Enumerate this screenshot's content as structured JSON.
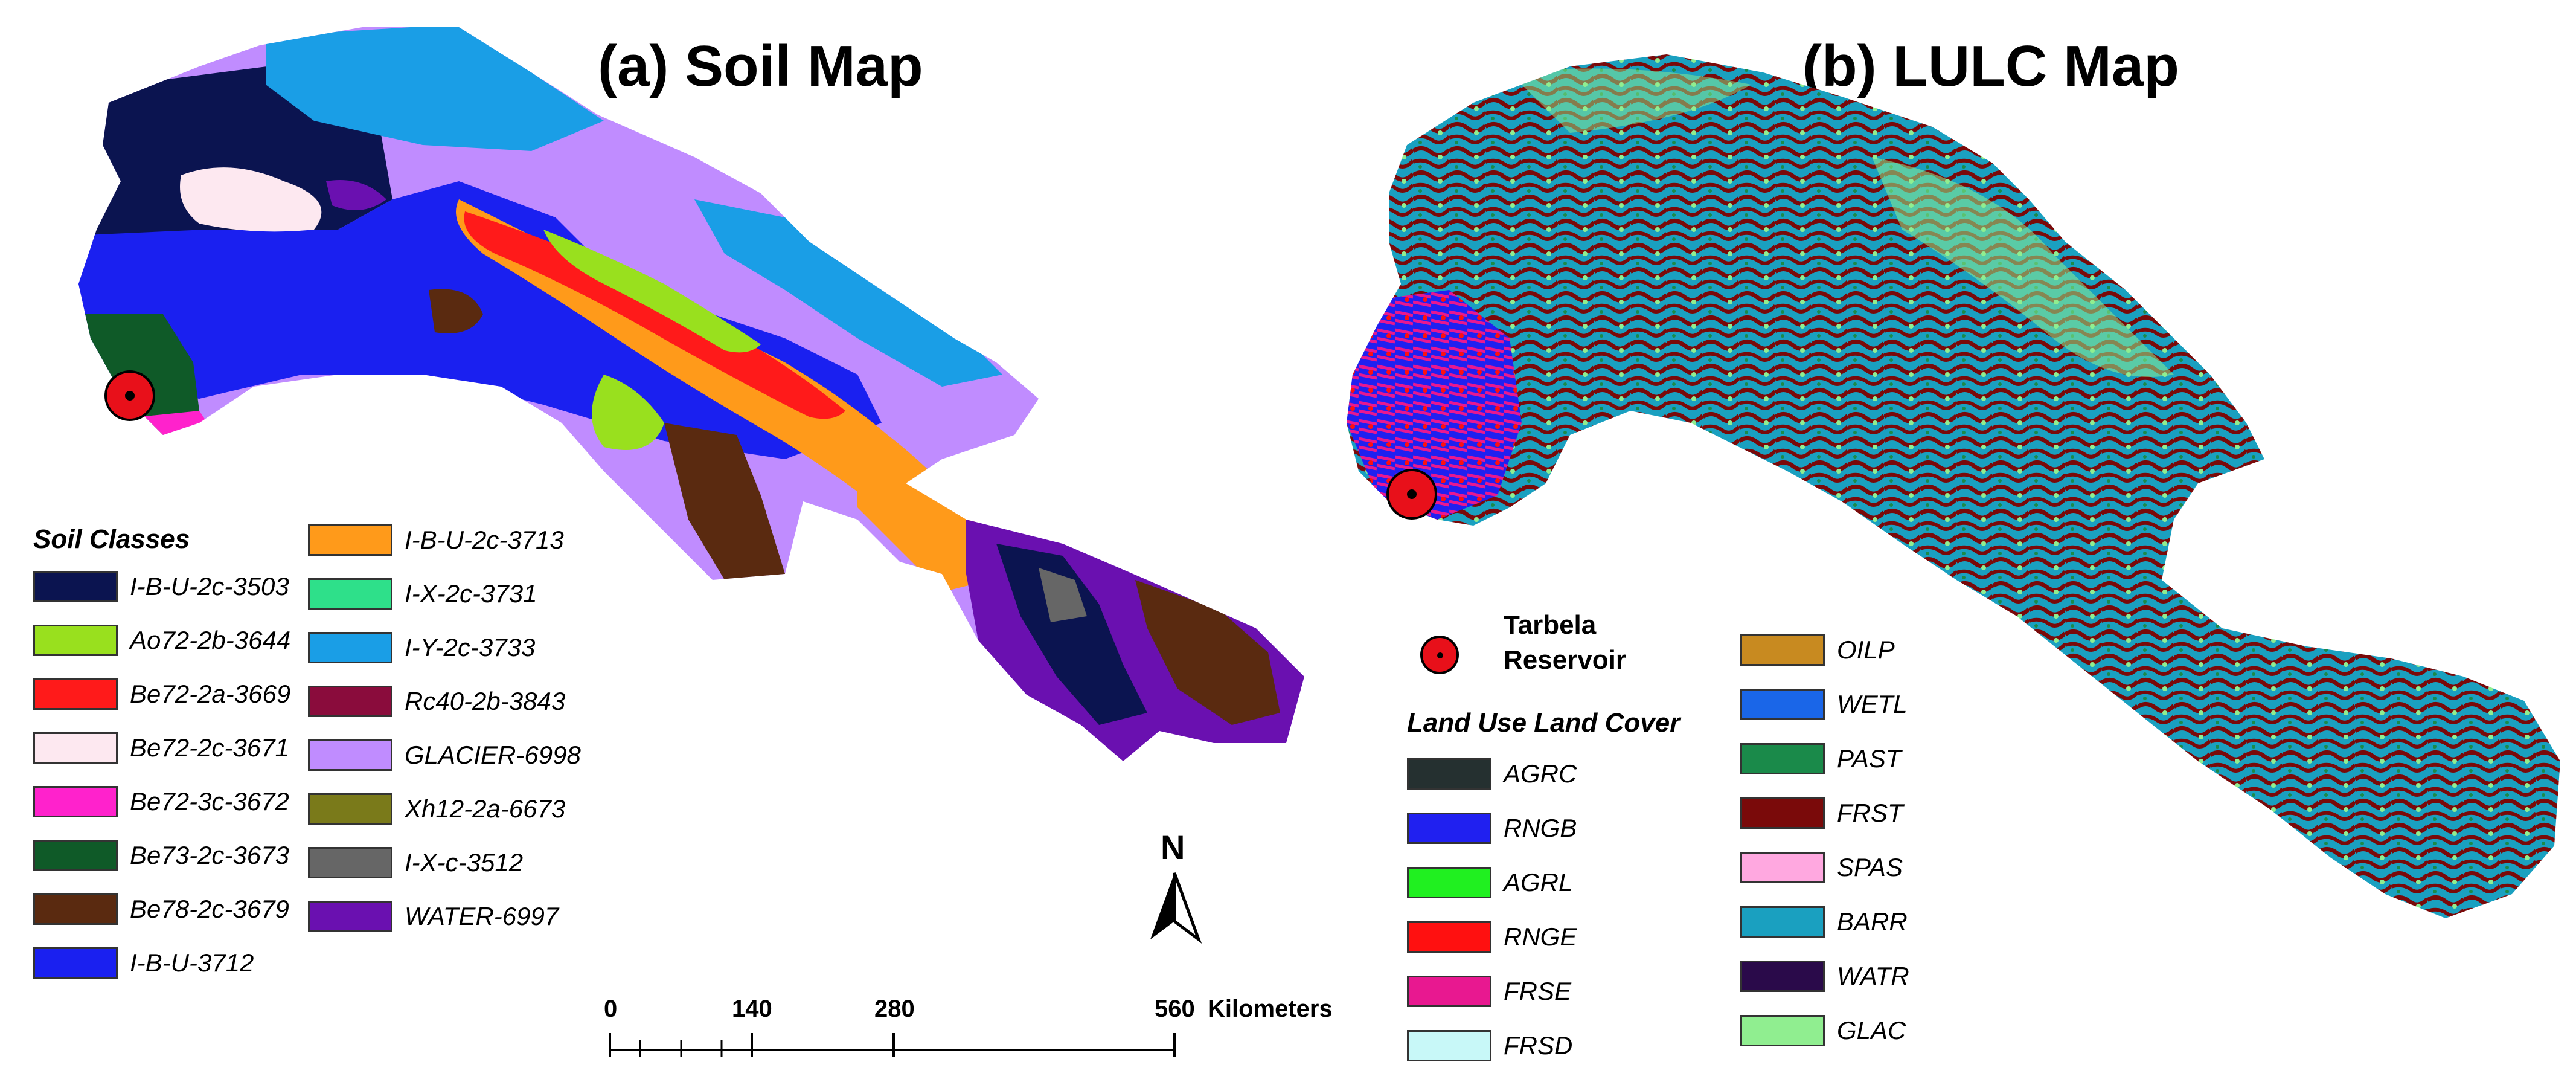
{
  "titles": {
    "soil": "(a) Soil Map",
    "lulc": "(b) LULC Map"
  },
  "soil_legend": {
    "title": "Soil Classes",
    "column1": [
      {
        "label": "I-B-U-2c-3503",
        "color": "#0b1450"
      },
      {
        "label": "Ao72-2b-3644",
        "color": "#99e01e"
      },
      {
        "label": "Be72-2a-3669",
        "color": "#ff1a1a"
      },
      {
        "label": "Be72-2c-3671",
        "color": "#fde8f0"
      },
      {
        "label": "Be72-3c-3672",
        "color": "#ff22cc"
      },
      {
        "label": "Be73-2c-3673",
        "color": "#0f5a28"
      },
      {
        "label": "Be78-2c-3679",
        "color": "#5a2a10"
      },
      {
        "label": "I-B-U-3712",
        "color": "#1a20f0"
      }
    ],
    "column2": [
      {
        "label": "I-B-U-2c-3713",
        "color": "#ff9a1a"
      },
      {
        "label": "I-X-2c-3731",
        "color": "#2ee08a"
      },
      {
        "label": "I-Y-2c-3733",
        "color": "#1a9ee6"
      },
      {
        "label": "Rc40-2b-3843",
        "color": "#8a0c3c"
      },
      {
        "label": "GLACIER-6998",
        "color": "#c08cff"
      },
      {
        "label": "Xh12-2a-6673",
        "color": "#7a7a1a"
      },
      {
        "label": "I-X-c-3512",
        "color": "#666666"
      },
      {
        "label": "WATER-6997",
        "color": "#6a10b0"
      }
    ]
  },
  "reservoir": {
    "label_line1": "Tarbela",
    "label_line2": "Reservoir",
    "color": "#e8101a"
  },
  "lulc_legend": {
    "title": "Land Use Land Cover",
    "column1": [
      {
        "label": "AGRC",
        "color": "#253030"
      },
      {
        "label": "RNGB",
        "color": "#2020f0"
      },
      {
        "label": "AGRL",
        "color": "#20f020"
      },
      {
        "label": "RNGE",
        "color": "#ff1010"
      },
      {
        "label": "FRSE",
        "color": "#e81890"
      },
      {
        "label": "FRSD",
        "color": "#c8f8f8"
      }
    ],
    "column2": [
      {
        "label": "OILP",
        "color": "#c88a20"
      },
      {
        "label": "WETL",
        "color": "#1a66e8"
      },
      {
        "label": "PAST",
        "color": "#1a8a4a"
      },
      {
        "label": "FRST",
        "color": "#7a0a0a"
      },
      {
        "label": "SPAS",
        "color": "#ffa8e0"
      },
      {
        "label": "BARR",
        "color": "#1aa0c0"
      },
      {
        "label": "WATR",
        "color": "#2a0a4a"
      },
      {
        "label": "GLAC",
        "color": "#90ee90"
      }
    ]
  },
  "scale_bar": {
    "ticks": [
      "0",
      "140",
      "280",
      "560"
    ],
    "unit": "Kilometers"
  },
  "north_arrow": {
    "label": "N"
  }
}
